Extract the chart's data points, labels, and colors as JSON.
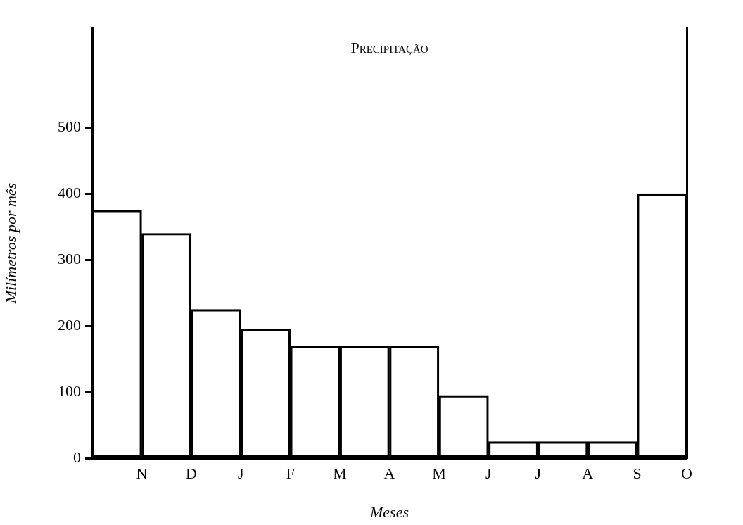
{
  "chart_data": {
    "type": "bar",
    "title": "Precipitação",
    "xlabel": "Meses",
    "ylabel": "Milímetros por mês",
    "categories": [
      "N",
      "D",
      "J",
      "F",
      "M",
      "A",
      "M",
      "J",
      "J",
      "A",
      "S",
      "O"
    ],
    "values": [
      375,
      340,
      225,
      195,
      170,
      170,
      170,
      95,
      25,
      25,
      25,
      400
    ],
    "color": "#000000",
    "ylim": [
      0,
      650
    ],
    "yticks": [
      0,
      100,
      200,
      300,
      400,
      500
    ],
    "grid": false,
    "legend": false
  }
}
